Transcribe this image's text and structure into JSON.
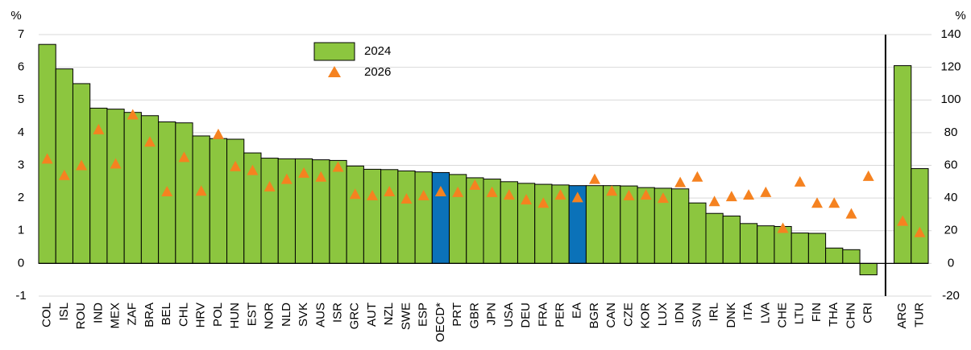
{
  "chart_data": [
    {
      "type": "bar",
      "y_label": "%",
      "legend": "top",
      "grid": true,
      "categories": [
        "COL",
        "ISL",
        "ROU",
        "IND",
        "MEX",
        "ZAF",
        "BRA",
        "BEL",
        "CHL",
        "HRV",
        "POL",
        "HUN",
        "EST",
        "NOR",
        "NLD",
        "SVK",
        "AUS",
        "ISR",
        "GRC",
        "AUT",
        "NZL",
        "SWE",
        "ESP",
        "OECD*",
        "PRT",
        "GBR",
        "JPN",
        "USA",
        "DEU",
        "FRA",
        "PER",
        "EA",
        "BGR",
        "CAN",
        "CZE",
        "KOR",
        "LUX",
        "IDN",
        "SVN",
        "IRL",
        "DNK",
        "ITA",
        "LVA",
        "CHE",
        "LTU",
        "FIN",
        "THA",
        "CHN",
        "CRI"
      ],
      "ylim": [
        -1,
        7
      ],
      "yticks": [
        -1,
        0,
        1,
        2,
        3,
        4,
        5,
        6,
        7
      ],
      "series": [
        {
          "name": "2024",
          "color": "#8cc63f",
          "marker": "bar",
          "colors": [
            "#8cc63f",
            "#8cc63f",
            "#8cc63f",
            "#8cc63f",
            "#8cc63f",
            "#8cc63f",
            "#8cc63f",
            "#8cc63f",
            "#8cc63f",
            "#8cc63f",
            "#8cc63f",
            "#8cc63f",
            "#8cc63f",
            "#8cc63f",
            "#8cc63f",
            "#8cc63f",
            "#8cc63f",
            "#8cc63f",
            "#8cc63f",
            "#8cc63f",
            "#8cc63f",
            "#8cc63f",
            "#8cc63f",
            "#0b72b9",
            "#8cc63f",
            "#8cc63f",
            "#8cc63f",
            "#8cc63f",
            "#8cc63f",
            "#8cc63f",
            "#8cc63f",
            "#0b72b9",
            "#8cc63f",
            "#8cc63f",
            "#8cc63f",
            "#8cc63f",
            "#8cc63f",
            "#8cc63f",
            "#8cc63f",
            "#8cc63f",
            "#8cc63f",
            "#8cc63f",
            "#8cc63f",
            "#8cc63f",
            "#8cc63f",
            "#8cc63f",
            "#8cc63f",
            "#8cc63f",
            "#8cc63f"
          ],
          "values": [
            6.7,
            5.95,
            5.5,
            4.75,
            4.72,
            4.62,
            4.52,
            4.33,
            4.3,
            3.9,
            3.82,
            3.8,
            3.38,
            3.22,
            3.2,
            3.2,
            3.17,
            3.15,
            2.98,
            2.88,
            2.87,
            2.83,
            2.8,
            2.78,
            2.72,
            2.62,
            2.58,
            2.5,
            2.45,
            2.42,
            2.4,
            2.38,
            2.38,
            2.38,
            2.37,
            2.32,
            2.3,
            2.28,
            1.85,
            1.53,
            1.45,
            1.22,
            1.15,
            1.13,
            0.93,
            0.92,
            0.47,
            0.42,
            -0.35
          ]
        },
        {
          "name": "2026",
          "color": "#f58220",
          "marker": "triangle",
          "values": [
            3.2,
            2.7,
            3.0,
            4.1,
            3.05,
            4.55,
            3.72,
            2.2,
            3.25,
            2.22,
            3.95,
            2.97,
            2.85,
            2.35,
            2.58,
            2.77,
            2.65,
            2.95,
            2.12,
            2.08,
            2.2,
            1.98,
            2.08,
            2.2,
            2.18,
            2.4,
            2.18,
            2.1,
            1.95,
            1.85,
            2.1,
            2.02,
            2.58,
            2.22,
            2.08,
            2.1,
            2.0,
            2.48,
            2.65,
            1.9,
            2.05,
            2.1,
            2.18,
            1.08,
            2.5,
            1.85,
            1.85,
            1.52,
            2.67
          ]
        }
      ]
    },
    {
      "type": "bar",
      "y2_label": "%",
      "categories": [
        "ARG",
        "TUR"
      ],
      "y2lim": [
        -20,
        140
      ],
      "y2ticks": [
        -20,
        0,
        20,
        40,
        60,
        80,
        100,
        120,
        140
      ],
      "series": [
        {
          "color": "#8cc63f",
          "marker": "bar",
          "axis": "y2",
          "values": [
            121,
            58
          ]
        },
        {
          "color": "#f58220",
          "marker": "triangle",
          "axis": "y2",
          "values": [
            26,
            19
          ]
        }
      ]
    }
  ]
}
